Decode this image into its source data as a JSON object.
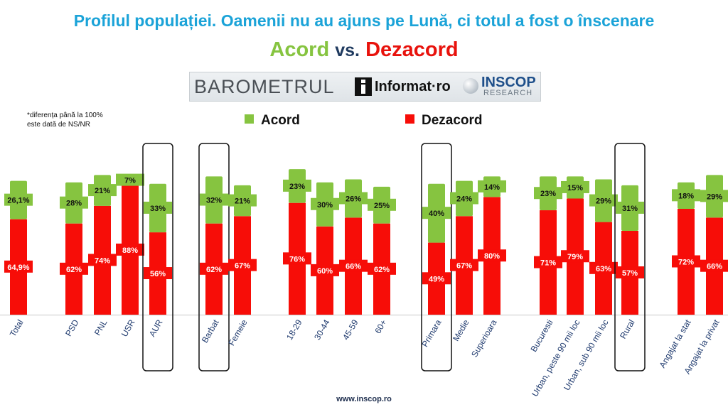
{
  "header": {
    "title": "Profilul populației. Oamenii nu au ajuns pe Lună, ci totul a fost o înscenare",
    "subtitle_acord": "Acord",
    "subtitle_vs": "vs.",
    "subtitle_dezacord": "Dezacord"
  },
  "logo": {
    "barometrul": "BAROMETRUL",
    "informat": "Informat",
    "informat_suffix": "·ro",
    "inscop": "INSCOP",
    "research": "RESEARCH"
  },
  "note": {
    "line1": "*diferența până la 100%",
    "line2": "este dată de NS/NR"
  },
  "footer": {
    "website": "www.inscop.ro"
  },
  "colors": {
    "acord": "#86c440",
    "dezacord": "#f70d08",
    "title": "#1ba3d8",
    "axis_label": "#1f3a6e"
  },
  "chart_data": {
    "type": "bar",
    "stacked": true,
    "title": "",
    "xlabel": "",
    "ylabel": "",
    "ylim": [
      0,
      100
    ],
    "legend": "top",
    "grid": false,
    "categories": [
      "Total",
      "PSD",
      "PNL",
      "USR",
      "AUR",
      "Barbat",
      "Femeie",
      "18-29",
      "30-44",
      "45-59",
      "60+",
      "Primara",
      "Medie",
      "Superioara",
      "Bucuresti",
      "Urban, peste 90 mii loc",
      "Urban, sub 90 mii loc",
      "Rural",
      "Angajat la stat",
      "Angajat la privat"
    ],
    "highlighted": [
      "AUR",
      "Barbat",
      "Primara",
      "Rural"
    ],
    "series": [
      {
        "name": "Dezacord",
        "values": [
          64.9,
          62,
          74,
          88,
          56,
          62,
          67,
          76,
          60,
          66,
          62,
          49,
          67,
          80,
          71,
          79,
          63,
          57,
          72,
          66
        ],
        "labels": [
          "64,9%",
          "62%",
          "74%",
          "88%",
          "56%",
          "62%",
          "67%",
          "76%",
          "60%",
          "66%",
          "62%",
          "49%",
          "67%",
          "80%",
          "71%",
          "79%",
          "63%",
          "57%",
          "72%",
          "66%"
        ]
      },
      {
        "name": "Acord",
        "values": [
          26.1,
          28,
          21,
          7,
          33,
          32,
          21,
          23,
          30,
          26,
          25,
          40,
          24,
          14,
          23,
          15,
          29,
          31,
          18,
          29
        ],
        "labels": [
          "26,1%",
          "28%",
          "21%",
          "7%",
          "33%",
          "32%",
          "21%",
          "23%",
          "30%",
          "26%",
          "25%",
          "40%",
          "24%",
          "14%",
          "23%",
          "15%",
          "29%",
          "31%",
          "18%",
          "29%"
        ]
      }
    ]
  }
}
